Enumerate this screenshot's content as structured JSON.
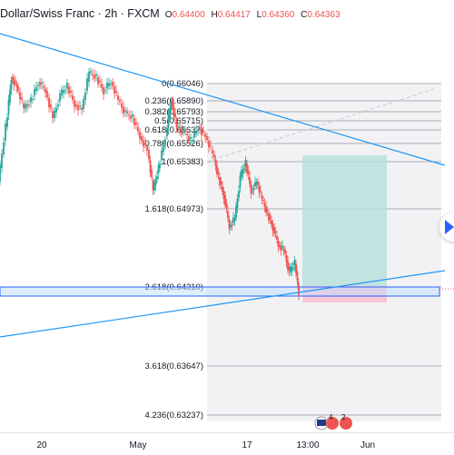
{
  "header": {
    "symbol": "Dollar/Swiss Franc · 2h · FXCM",
    "ohlc": [
      {
        "k": "O",
        "v": "0.64400"
      },
      {
        "k": "H",
        "v": "0.64417"
      },
      {
        "k": "L",
        "v": "0.64360"
      },
      {
        "k": "C",
        "v": "0.64363"
      }
    ]
  },
  "fib_levels": [
    {
      "label": "0(0.66046)"
    },
    {
      "label": "0.236(0.65890)"
    },
    {
      "label": "0.382(0.65793)"
    },
    {
      "label": "0.5(0.65715)"
    },
    {
      "label": "0.618(0.65637)"
    },
    {
      "label": "0.786(0.65526)"
    },
    {
      "label": "1(0.65383)"
    },
    {
      "label": "1.618(0.64973)"
    },
    {
      "label": "2.618(0.64310)"
    },
    {
      "label": "3.618(0.63647)"
    },
    {
      "label": "4.236(0.63237)"
    }
  ],
  "x_axis": [
    "20",
    "May",
    "17",
    "13:00",
    "Jun"
  ],
  "colors": {
    "up": "#26a69a",
    "down": "#ef5350",
    "trendline": "#2196f3",
    "fib": "#9598a1",
    "profit_zone": "#b2dfdb",
    "loss_zone": "#f8bbd0",
    "zone_outline": "#2962ff"
  },
  "icons": {
    "nav_arrow": "chevron-right-icon",
    "flag": "flag-icon"
  },
  "badges": [
    "4",
    "2"
  ]
}
